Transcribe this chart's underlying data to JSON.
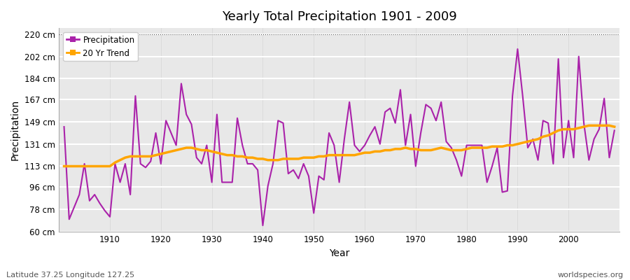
{
  "title": "Yearly Total Precipitation 1901 - 2009",
  "xlabel": "Year",
  "ylabel": "Precipitation",
  "bottom_left_label": "Latitude 37.25 Longitude 127.25",
  "bottom_right_label": "worldspecies.org",
  "ylim": [
    60,
    225
  ],
  "yticks": [
    60,
    78,
    96,
    113,
    131,
    149,
    167,
    184,
    202,
    220
  ],
  "ytick_labels": [
    "60 cm",
    "78 cm",
    "96 cm",
    "113 cm",
    "131 cm",
    "149 cm",
    "167 cm",
    "184 cm",
    "202 cm",
    "220 cm"
  ],
  "xticks": [
    1910,
    1920,
    1930,
    1940,
    1950,
    1960,
    1970,
    1980,
    1990,
    2000
  ],
  "bg_color": "#ffffff",
  "plot_bg_color": "#e8e8e8",
  "grid_color": "#ffffff",
  "precip_color": "#aa22aa",
  "trend_color": "#FFA500",
  "precip_linewidth": 1.5,
  "trend_linewidth": 2.5,
  "years": [
    1901,
    1902,
    1903,
    1904,
    1905,
    1906,
    1907,
    1908,
    1909,
    1910,
    1911,
    1912,
    1913,
    1914,
    1915,
    1916,
    1917,
    1918,
    1919,
    1920,
    1921,
    1922,
    1923,
    1924,
    1925,
    1926,
    1927,
    1928,
    1929,
    1930,
    1931,
    1932,
    1933,
    1934,
    1935,
    1936,
    1937,
    1938,
    1939,
    1940,
    1941,
    1942,
    1943,
    1944,
    1945,
    1946,
    1947,
    1948,
    1949,
    1950,
    1951,
    1952,
    1953,
    1954,
    1955,
    1956,
    1957,
    1958,
    1959,
    1960,
    1961,
    1962,
    1963,
    1964,
    1965,
    1966,
    1967,
    1968,
    1969,
    1970,
    1971,
    1972,
    1973,
    1974,
    1975,
    1976,
    1977,
    1978,
    1979,
    1980,
    1981,
    1982,
    1983,
    1984,
    1985,
    1986,
    1987,
    1988,
    1989,
    1990,
    1991,
    1992,
    1993,
    1994,
    1995,
    1996,
    1997,
    1998,
    1999,
    2000,
    2001,
    2002,
    2003,
    2004,
    2005,
    2006,
    2007,
    2008,
    2009
  ],
  "precip": [
    145,
    70,
    80,
    90,
    115,
    85,
    90,
    83,
    77,
    72,
    115,
    100,
    115,
    90,
    170,
    115,
    112,
    117,
    140,
    115,
    150,
    140,
    130,
    180,
    155,
    147,
    120,
    115,
    130,
    100,
    155,
    100,
    100,
    100,
    152,
    130,
    115,
    115,
    110,
    65,
    97,
    115,
    150,
    148,
    107,
    110,
    103,
    115,
    105,
    75,
    105,
    102,
    140,
    130,
    100,
    135,
    165,
    130,
    125,
    130,
    138,
    145,
    131,
    157,
    160,
    148,
    175,
    130,
    155,
    113,
    140,
    163,
    160,
    150,
    165,
    133,
    128,
    118,
    105,
    130,
    130,
    130,
    130,
    100,
    113,
    128,
    92,
    93,
    170,
    208,
    170,
    128,
    135,
    118,
    150,
    148,
    115,
    200,
    120,
    150,
    120,
    202,
    148,
    118,
    135,
    143,
    168,
    120,
    142
  ],
  "trend": [
    113,
    113,
    113,
    113,
    113,
    113,
    113,
    113,
    113,
    113,
    116,
    118,
    120,
    121,
    121,
    121,
    121,
    121,
    122,
    123,
    124,
    125,
    126,
    127,
    128,
    128,
    127,
    126,
    126,
    125,
    124,
    123,
    122,
    122,
    121,
    121,
    120,
    120,
    119,
    119,
    118,
    118,
    118,
    119,
    119,
    119,
    119,
    120,
    120,
    120,
    121,
    121,
    122,
    122,
    122,
    122,
    122,
    122,
    123,
    124,
    124,
    125,
    125,
    126,
    126,
    127,
    127,
    128,
    127,
    127,
    126,
    126,
    126,
    127,
    128,
    127,
    126,
    126,
    126,
    127,
    128,
    128,
    128,
    128,
    129,
    129,
    129,
    130,
    130,
    131,
    132,
    133,
    134,
    135,
    137,
    138,
    140,
    142,
    143,
    143,
    143,
    144,
    145,
    146,
    146,
    146,
    146,
    146,
    145
  ]
}
